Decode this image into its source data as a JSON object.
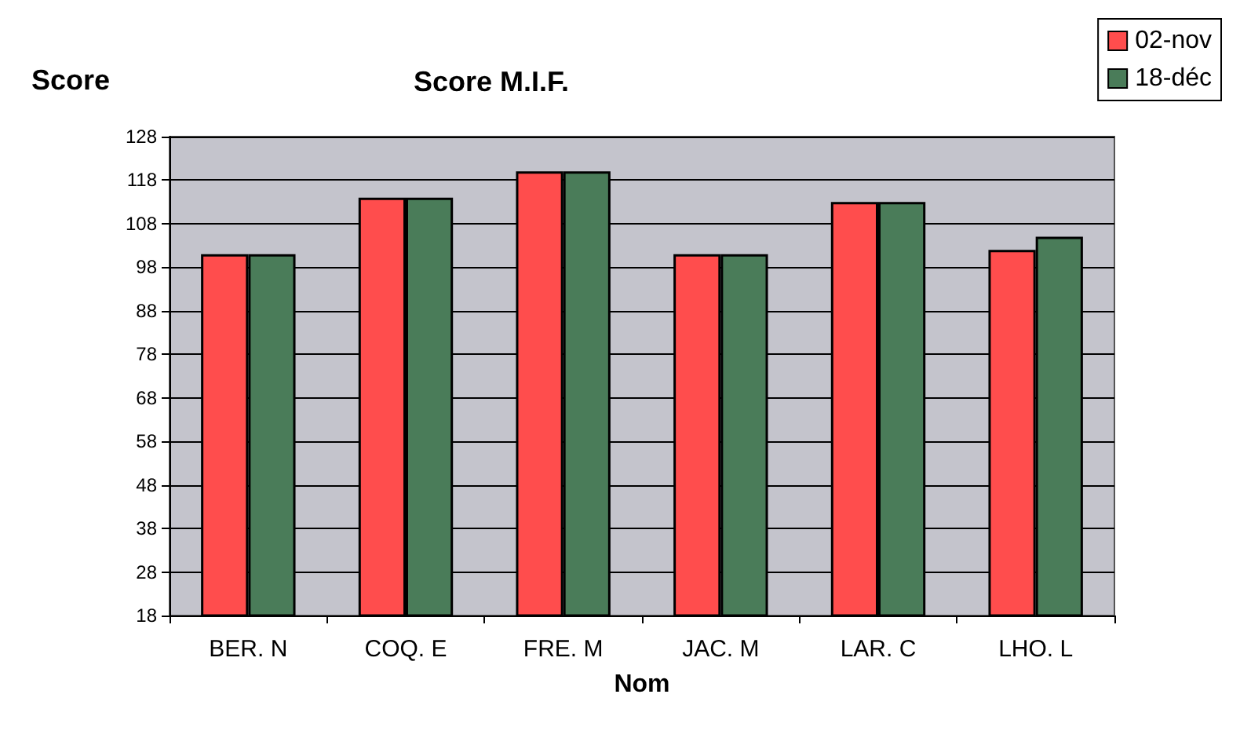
{
  "chart_data": {
    "type": "bar",
    "title": "Score M.I.F.",
    "ylabel": "Score",
    "xlabel": "Nom",
    "categories": [
      "BER. N",
      "COQ. E",
      "FRE. M",
      "JAC. M",
      "LAR. C",
      "LHO. L"
    ],
    "series": [
      {
        "name": "02-nov",
        "color": "#ff4d4d",
        "values": [
          101,
          114,
          120,
          101,
          113,
          102
        ]
      },
      {
        "name": "18-déc",
        "color": "#4a7c59",
        "values": [
          101,
          114,
          120,
          101,
          113,
          105
        ]
      }
    ],
    "ylim": [
      18,
      128
    ],
    "yticks": [
      18,
      28,
      38,
      48,
      58,
      68,
      78,
      88,
      98,
      108,
      118,
      128
    ],
    "grid": "y",
    "legend": "top right"
  }
}
